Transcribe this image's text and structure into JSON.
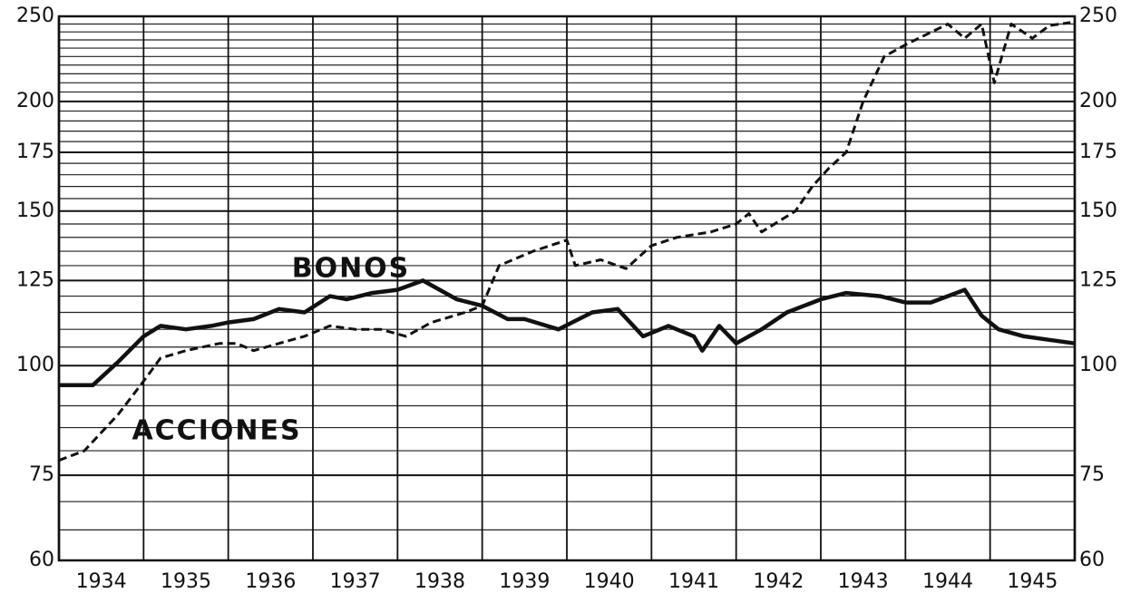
{
  "chart_data": {
    "type": "line",
    "log_scale": true,
    "grid": true,
    "categories": [
      "1934",
      "1935",
      "1936",
      "1937",
      "1938",
      "1939",
      "1940",
      "1941",
      "1942",
      "1943",
      "1944",
      "1945"
    ],
    "xlim": [
      1934,
      1946
    ],
    "ylim": [
      60,
      250
    ],
    "yticks": [
      60,
      75,
      100,
      125,
      150,
      175,
      200,
      250
    ],
    "minor_yticks": [
      65,
      70,
      80,
      85,
      90,
      95,
      105,
      110,
      115,
      120,
      130,
      135,
      140,
      145,
      155,
      160,
      165,
      170,
      180,
      185,
      190,
      195,
      205,
      210,
      215,
      220,
      225,
      230,
      235,
      240,
      245
    ],
    "annotations": [
      {
        "text": "BONOS"
      },
      {
        "text": "ACCIONES"
      }
    ],
    "series": [
      {
        "name": "BONOS",
        "color": "#111111",
        "line_style": "solid",
        "x": [
          1934.0,
          1934.4,
          1934.7,
          1935.0,
          1935.2,
          1935.5,
          1935.8,
          1936.0,
          1936.3,
          1936.6,
          1936.9,
          1937.2,
          1937.4,
          1937.7,
          1938.0,
          1938.3,
          1938.7,
          1939.0,
          1939.3,
          1939.5,
          1939.9,
          1940.3,
          1940.6,
          1940.9,
          1941.2,
          1941.5,
          1941.6,
          1941.8,
          1942.0,
          1942.3,
          1942.6,
          1943.0,
          1943.3,
          1943.7,
          1944.0,
          1944.3,
          1944.7,
          1944.9,
          1945.1,
          1945.4,
          1945.7,
          1946.0
        ],
        "values": [
          95,
          95,
          101,
          108,
          111,
          110,
          111,
          112,
          113,
          116,
          115,
          120,
          119,
          121,
          122,
          125,
          119,
          117,
          113,
          113,
          110,
          115,
          116,
          108,
          111,
          108,
          104,
          111,
          106,
          110,
          115,
          119,
          121,
          120,
          118,
          118,
          122,
          114,
          110,
          108,
          107,
          106
        ]
      },
      {
        "name": "ACCIONES",
        "color": "#111111",
        "line_style": "dashed",
        "x": [
          1934.0,
          1934.3,
          1934.7,
          1935.0,
          1935.2,
          1935.5,
          1935.9,
          1936.1,
          1936.3,
          1936.6,
          1936.9,
          1937.2,
          1937.5,
          1937.8,
          1938.1,
          1938.4,
          1938.8,
          1939.0,
          1939.2,
          1939.6,
          1940.0,
          1940.1,
          1940.4,
          1940.7,
          1941.0,
          1941.3,
          1941.7,
          1942.0,
          1942.15,
          1942.3,
          1942.7,
          1942.9,
          1943.1,
          1943.3,
          1943.5,
          1943.75,
          1944.0,
          1944.5,
          1944.7,
          1944.9,
          1945.05,
          1945.25,
          1945.5,
          1945.7,
          1945.95
        ],
        "values": [
          78,
          80,
          88,
          96,
          102,
          104,
          106,
          106,
          104,
          106,
          108,
          111,
          110,
          110,
          108,
          112,
          115,
          117,
          130,
          135,
          139,
          130,
          132,
          129,
          137,
          140,
          142,
          145,
          149,
          142,
          150,
          160,
          168,
          175,
          200,
          225,
          232,
          245,
          236,
          245,
          210,
          245,
          236,
          244,
          246
        ]
      }
    ]
  }
}
